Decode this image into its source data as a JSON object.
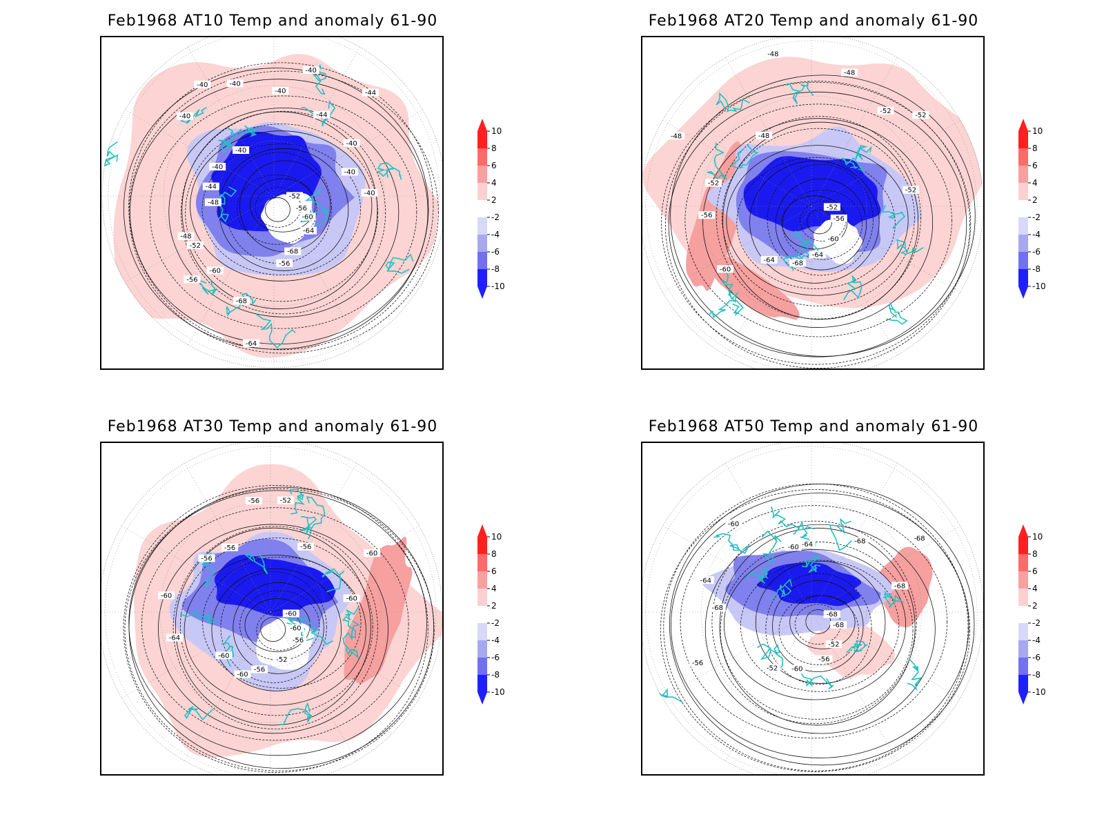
{
  "panels": [
    {
      "id": "at10",
      "title": "Feb1968 AT10 Temp and anomaly 61-90",
      "contour_labels": [
        "-52",
        "-56",
        "-60",
        "-64",
        "-68",
        "-56",
        "-64",
        "-68",
        "-60",
        "-56",
        "-52",
        "-48",
        "-48",
        "-44",
        "-40",
        "-40",
        "-40",
        "-40",
        "-40",
        "-40",
        "-40",
        "-44",
        "-44",
        "-40",
        "-40",
        "-40"
      ],
      "cold_core": "strong",
      "warm_patches": [
        "south-east",
        "north"
      ]
    },
    {
      "id": "at20",
      "title": "Feb1968 AT20 Temp and anomaly 61-90",
      "contour_labels": [
        "-52",
        "-56",
        "-60",
        "-64",
        "-68",
        "-64",
        "-60",
        "-56",
        "-52",
        "-48",
        "-48",
        "-48",
        "-48",
        "-52",
        "-52",
        "-52"
      ],
      "cold_core": "strong",
      "warm_patches": [
        "west",
        "north",
        "south"
      ]
    },
    {
      "id": "at30",
      "title": "Feb1968 AT30 Temp and anomaly 61-90",
      "contour_labels": [
        "-60",
        "-60",
        "-56",
        "-52",
        "-56",
        "-60",
        "-60",
        "-64",
        "-60",
        "-56",
        "-56",
        "-56",
        "-52",
        "-56",
        "-60",
        "-60"
      ],
      "cold_core": "moderate",
      "warm_patches": [
        "east",
        "north",
        "south"
      ]
    },
    {
      "id": "at50",
      "title": "Feb1968 AT50 Temp and anomaly 61-90",
      "contour_labels": [
        "-68",
        "-68",
        "-52",
        "-56",
        "-60",
        "-52",
        "-56",
        "-68",
        "-64",
        "-60",
        "-60",
        "-64",
        "-68",
        "-68",
        "-68"
      ],
      "cold_core": "weak",
      "warm_patches": [
        "east"
      ]
    }
  ],
  "legend": {
    "labels": [
      "10",
      "8",
      "6",
      "4",
      "2",
      "-2",
      "-4",
      "-6",
      "-8",
      "-10"
    ],
    "colors": [
      "#ff2020",
      "#ff6a6a",
      "#f8a0a0",
      "#fcd0d0",
      "#ffffff",
      "#d8d8f8",
      "#a8a8f0",
      "#7070f0",
      "#2020ff"
    ]
  },
  "colors": {
    "coast": "#20c0c0",
    "warm_light": "#fcd4d4",
    "warm_mid": "#f6a0a0",
    "cold_light": "#c8c8f6",
    "cold_mid": "#8080ee",
    "cold_deep": "#1a1af0"
  }
}
